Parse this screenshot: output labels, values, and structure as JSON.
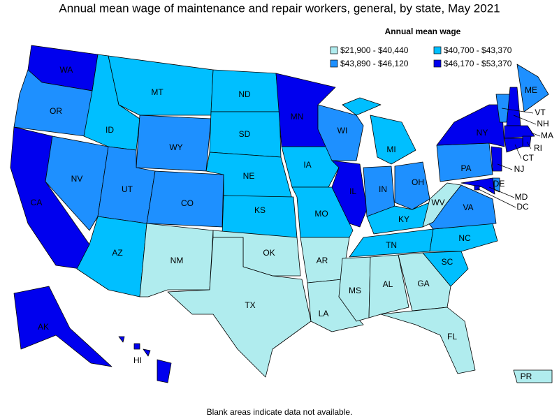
{
  "title": "Annual mean wage of maintenance and repair workers, general, by state, May 2021",
  "legend": {
    "title": "Annual mean wage",
    "items": [
      {
        "label": "$21,900 - $40,440",
        "color": "#b0ecee"
      },
      {
        "label": "$40,700 - $43,370",
        "color": "#00bfff"
      },
      {
        "label": "$43,890 - $46,120",
        "color": "#1e90ff"
      },
      {
        "label": "$46,170 - $53,370",
        "color": "#0000ee"
      }
    ]
  },
  "states": [
    {
      "label": "WA",
      "class": 3
    },
    {
      "label": "OR",
      "class": 2
    },
    {
      "label": "CA",
      "class": 3
    },
    {
      "label": "NV",
      "class": 2
    },
    {
      "label": "ID",
      "class": 1
    },
    {
      "label": "MT",
      "class": 1
    },
    {
      "label": "WY",
      "class": 2
    },
    {
      "label": "UT",
      "class": 2
    },
    {
      "label": "CO",
      "class": 2
    },
    {
      "label": "AZ",
      "class": 1
    },
    {
      "label": "NM",
      "class": 0
    },
    {
      "label": "ND",
      "class": 1
    },
    {
      "label": "SD",
      "class": 1
    },
    {
      "label": "NE",
      "class": 1
    },
    {
      "label": "KS",
      "class": 1
    },
    {
      "label": "OK",
      "class": 0
    },
    {
      "label": "TX",
      "class": 0
    },
    {
      "label": "MN",
      "class": 3
    },
    {
      "label": "IA",
      "class": 1
    },
    {
      "label": "MO",
      "class": 1
    },
    {
      "label": "AR",
      "class": 0
    },
    {
      "label": "LA",
      "class": 0
    },
    {
      "label": "WI",
      "class": 2
    },
    {
      "label": "IL",
      "class": 3
    },
    {
      "label": "MI",
      "class": 1
    },
    {
      "label": "IN",
      "class": 2
    },
    {
      "label": "OH",
      "class": 2
    },
    {
      "label": "KY",
      "class": 1
    },
    {
      "label": "TN",
      "class": 1
    },
    {
      "label": "MS",
      "class": 0
    },
    {
      "label": "AL",
      "class": 0
    },
    {
      "label": "GA",
      "class": 0
    },
    {
      "label": "FL",
      "class": 0
    },
    {
      "label": "SC",
      "class": 1
    },
    {
      "label": "NC",
      "class": 1
    },
    {
      "label": "VA",
      "class": 2
    },
    {
      "label": "WV",
      "class": 0
    },
    {
      "label": "PA",
      "class": 2
    },
    {
      "label": "NY",
      "class": 3
    },
    {
      "label": "VT",
      "class": 2
    },
    {
      "label": "NH",
      "class": 3
    },
    {
      "label": "ME",
      "class": 2
    },
    {
      "label": "MA",
      "class": 3
    },
    {
      "label": "RI",
      "class": 3
    },
    {
      "label": "CT",
      "class": 3
    },
    {
      "label": "NJ",
      "class": 3
    },
    {
      "label": "DE",
      "class": 2
    },
    {
      "label": "MD",
      "class": 3
    },
    {
      "label": "DC",
      "class": 3
    },
    {
      "label": "AK",
      "class": 3
    },
    {
      "label": "HI",
      "class": 3
    },
    {
      "label": "PR",
      "class": 0
    }
  ],
  "footnote": "Blank areas indicate data not available."
}
